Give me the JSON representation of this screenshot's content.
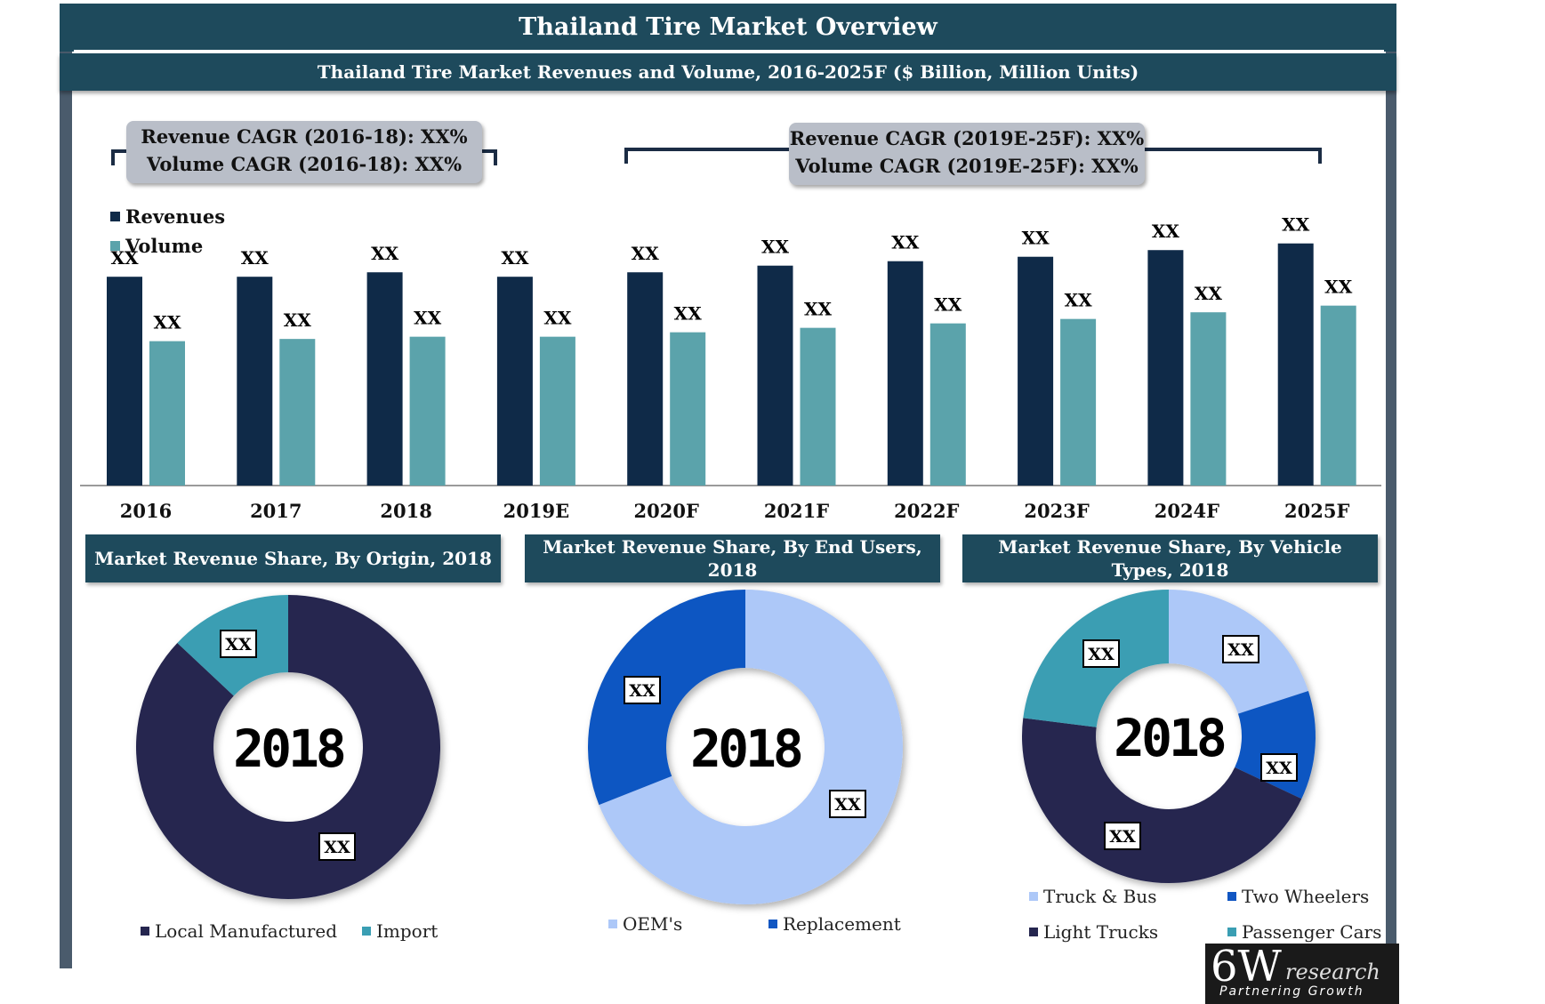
{
  "title": "Thailand Tire Market Overview",
  "subtitle": "Thailand Tire Market Revenues and Volume, 2016-2025F ($ Billion, Million Units)",
  "cagr_left": {
    "line1": "Revenue CAGR (2016-18): XX%",
    "line2": "Volume CAGR (2016-18): XX%"
  },
  "cagr_right": {
    "line1": "Revenue CAGR (2019E-25F): XX%",
    "line2": "Volume CAGR (2019E-25F): XX%"
  },
  "chart_data": [
    {
      "type": "bar",
      "categories": [
        "2016",
        "2017",
        "2018",
        "2019E",
        "2020F",
        "2021F",
        "2022F",
        "2023F",
        "2024F",
        "2025F"
      ],
      "series": [
        {
          "name": "Revenues",
          "color": "#0f2a48",
          "values": [
            9.4,
            9.4,
            9.6,
            9.4,
            9.6,
            9.9,
            10.1,
            10.3,
            10.6,
            10.9
          ],
          "labels": [
            "XX",
            "XX",
            "XX",
            "XX",
            "XX",
            "XX",
            "XX",
            "XX",
            "XX",
            "XX"
          ]
        },
        {
          "name": "Volume",
          "color": "#5ba3ab",
          "values": [
            6.5,
            6.6,
            6.7,
            6.7,
            6.9,
            7.1,
            7.3,
            7.5,
            7.8,
            8.1
          ],
          "labels": [
            "XX",
            "XX",
            "XX",
            "XX",
            "XX",
            "XX",
            "XX",
            "XX",
            "XX",
            "XX"
          ]
        }
      ],
      "ylim": [
        0,
        13
      ],
      "legend": "top-left",
      "grid": false
    },
    {
      "type": "pie",
      "title": "Market Revenue Share, By Origin, 2018",
      "center_label": "2018",
      "slices": [
        {
          "name": "Local Manufactured",
          "value": 87,
          "color": "#25264f",
          "label": "XX"
        },
        {
          "name": "Import",
          "value": 13,
          "color": "#3a9eb3",
          "label": "XX"
        }
      ],
      "legend": "bottom"
    },
    {
      "type": "pie",
      "title": "Market Revenue Share, By End Users, 2018",
      "center_label": "2018",
      "slices": [
        {
          "name": "OEM's",
          "value": 69,
          "color": "#adc8f8",
          "label": "XX"
        },
        {
          "name": "Replacement",
          "value": 31,
          "color": "#1156c2",
          "label": "XX"
        }
      ],
      "legend": "bottom"
    },
    {
      "type": "pie",
      "title": "Market Revenue Share, By Vehicle Types, 2018",
      "center_label": "2018",
      "slices": [
        {
          "name": "Truck & Bus",
          "value": 20,
          "color": "#adc8f8",
          "label": "XX"
        },
        {
          "name": "Two Wheelers",
          "value": 12,
          "color": "#1156c2",
          "label": "XX"
        },
        {
          "name": "Light Trucks",
          "value": 45,
          "color": "#25264f",
          "label": "XX"
        },
        {
          "name": "Passenger Cars",
          "value": 23,
          "color": "#3a9eb3",
          "label": "XX"
        }
      ],
      "legend": "bottom"
    }
  ],
  "logo": {
    "big": "6W",
    "small": "research",
    "tagline": "Partnering Growth"
  }
}
